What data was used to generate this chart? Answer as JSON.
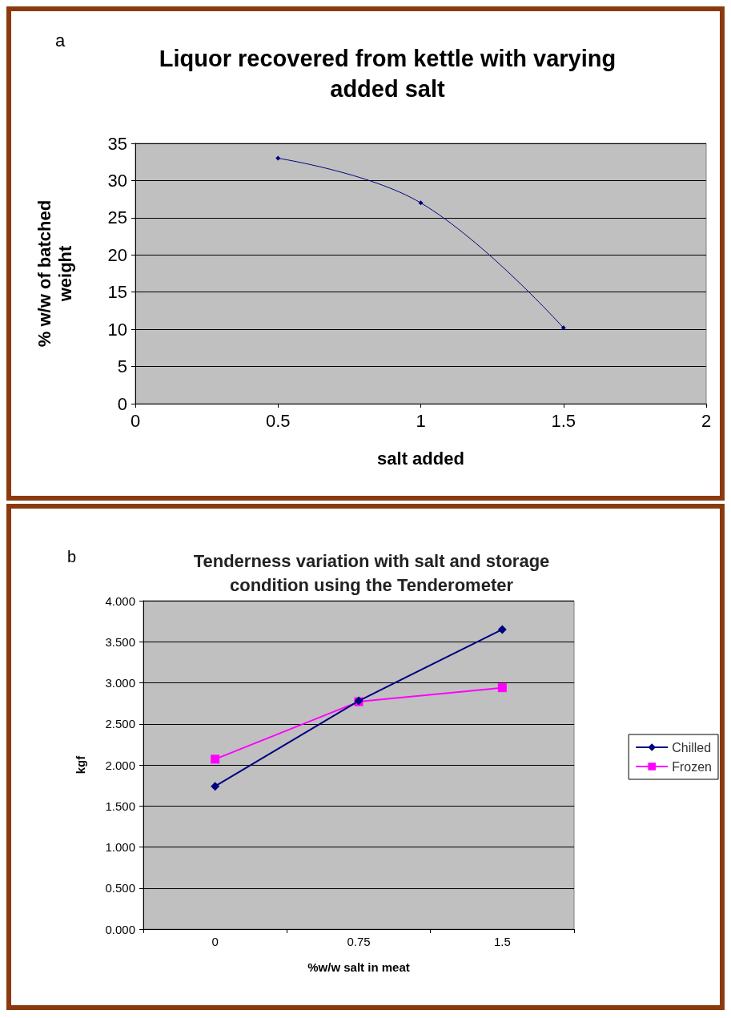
{
  "chart_data": [
    {
      "type": "line",
      "title": "Liquor recovered from kettle with varying\nadded salt",
      "xlabel": "salt added",
      "ylabel": "% w/w of batched\nweight",
      "annotations": [
        "a"
      ],
      "x": [
        0.5,
        1,
        1.5
      ],
      "series": [
        {
          "color": "#000080",
          "values": [
            33,
            27,
            10.2
          ]
        }
      ],
      "xlim": [
        0,
        2
      ],
      "xticks": [
        0,
        0.5,
        1,
        1.5,
        2
      ],
      "ylim": [
        0,
        35
      ],
      "yticks": [
        0,
        5,
        10,
        15,
        20,
        25,
        30,
        35
      ],
      "grid": "y",
      "legend": false,
      "marker": "diamond"
    },
    {
      "type": "line",
      "title": "Tenderness variation with salt and storage\ncondition using the Tenderometer",
      "xlabel": "%w/w salt in meat",
      "ylabel": "kgf",
      "annotations": [
        "b"
      ],
      "categories": [
        "0",
        "0.75",
        "1.5"
      ],
      "series": [
        {
          "name": "Chilled",
          "color": "#000080",
          "marker": "diamond",
          "values": [
            1.74,
            2.78,
            3.65
          ]
        },
        {
          "name": "Frozen",
          "color": "#ff00ff",
          "marker": "square",
          "values": [
            2.07,
            2.77,
            2.94
          ]
        }
      ],
      "ylim": [
        0,
        4
      ],
      "yticks": [
        {
          "value": 0,
          "label": "0.000"
        },
        {
          "value": 0.5,
          "label": "0.500"
        },
        {
          "value": 1,
          "label": "1.000"
        },
        {
          "value": 1.5,
          "label": "1.500"
        },
        {
          "value": 2,
          "label": "2.000"
        },
        {
          "value": 2.5,
          "label": "2.500"
        },
        {
          "value": 3,
          "label": "3.000"
        },
        {
          "value": 3.5,
          "label": "3.500"
        },
        {
          "value": 4,
          "label": "4.000"
        }
      ],
      "grid": "y",
      "legend": "right"
    }
  ]
}
